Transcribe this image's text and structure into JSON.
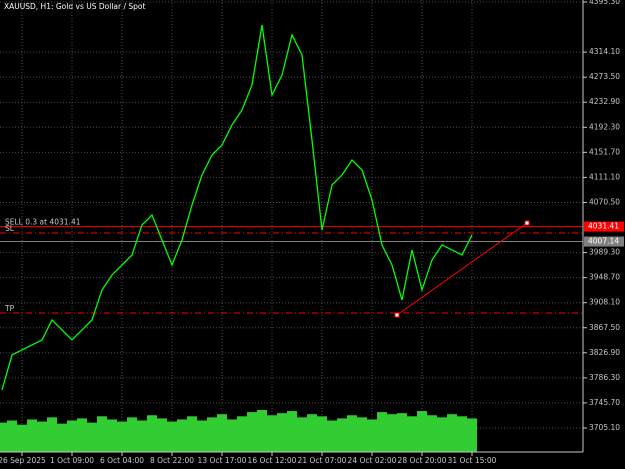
{
  "chart_data": {
    "type": "line",
    "title": "XAUUSD, H1: Gold vs US Dollar / Spot",
    "categories": [
      null,
      null,
      "26 Sep 2025",
      null,
      null,
      null,
      null,
      "1 Oct 09:00",
      null,
      null,
      null,
      null,
      "6 Oct 04:00",
      null,
      null,
      null,
      null,
      "8 Oct 22:00",
      null,
      null,
      null,
      null,
      "13 Oct 17:00",
      null,
      null,
      null,
      null,
      "16 Oct 12:00",
      null,
      null,
      null,
      null,
      "21 Oct 07:00",
      null,
      null,
      null,
      null,
      "24 Oct 02:00",
      null,
      null,
      null,
      null,
      "28 Oct 20:00",
      null,
      null,
      null,
      null,
      "31 Oct 15:00"
    ],
    "series": [
      {
        "name": "XAUUSD",
        "color": "#00ff00",
        "values": [
          3766.7,
          3823.4,
          3831.5,
          3839.6,
          3847.7,
          3880.1,
          3863.9,
          3847.7,
          3863.9,
          3880.1,
          3928.7,
          3953.0,
          3969.2,
          3985.4,
          4034.0,
          4050.2,
          4009.7,
          3969.2,
          4009.7,
          4066.4,
          4115.0,
          4147.4,
          4163.6,
          4196.0,
          4220.3,
          4260.8,
          4358.0,
          4244.6,
          4277.0,
          4341.8,
          4309.4,
          4171.7,
          4025.9,
          4098.8,
          4115.0,
          4139.3,
          4123.1,
          4074.5,
          4001.6,
          3969.2,
          3912.5,
          3993.5,
          3928.7,
          3977.3,
          4001.6,
          3993.5,
          3985.4,
          4017.8
        ]
      },
      {
        "name": "Volume",
        "color": "#32cd32",
        "values": [
          28,
          30,
          26,
          31,
          29,
          33,
          27,
          30,
          32,
          28,
          34,
          31,
          29,
          33,
          30,
          35,
          32,
          29,
          31,
          34,
          30,
          33,
          36,
          31,
          34,
          38,
          40,
          35,
          37,
          39,
          33,
          36,
          34,
          30,
          32,
          35,
          33,
          31,
          38,
          36,
          37,
          34,
          39,
          35,
          33,
          36,
          34,
          32
        ]
      }
    ],
    "ylim": [
      3666.2,
      4398.5
    ],
    "yticks": [
      {
        "value": 3705.1,
        "label": "3705.10"
      },
      {
        "value": 3745.7,
        "label": "3745.70"
      },
      {
        "value": 3786.3,
        "label": "3786.30"
      },
      {
        "value": 3826.9,
        "label": "3826.90"
      },
      {
        "value": 3867.5,
        "label": "3867.50"
      },
      {
        "value": 3908.1,
        "label": "3908.10"
      },
      {
        "value": 3948.7,
        "label": "3948.70"
      },
      {
        "value": 3989.3,
        "label": "3989.30"
      },
      {
        "value": 4070.5,
        "label": "4070.50"
      },
      {
        "value": 4111.1,
        "label": "4111.10"
      },
      {
        "value": 4151.7,
        "label": "4151.70"
      },
      {
        "value": 4192.3,
        "label": "4192.30"
      },
      {
        "value": 4232.9,
        "label": "4232.90"
      },
      {
        "value": 4273.5,
        "label": "4273.50"
      },
      {
        "value": 4314.1,
        "label": "4314.10"
      },
      {
        "value": 4395.3,
        "label": "4395.30"
      }
    ],
    "grid": true,
    "levels": [
      {
        "name": "SELL 0.3 at 4031.41",
        "value": 4031.41,
        "color": "#ff0000",
        "style": "solid"
      },
      {
        "name": "SL",
        "value": 4021.0,
        "color": "#ff0000",
        "style": "dash"
      },
      {
        "name": "TP",
        "value": 3891.4,
        "color": "#ff0000",
        "style": "dash"
      }
    ],
    "bid": {
      "value": 4007.14,
      "color": "#808080"
    },
    "trend_line": {
      "color": "#ff0000",
      "values": [
        3888.2,
        4037.2
      ]
    }
  }
}
